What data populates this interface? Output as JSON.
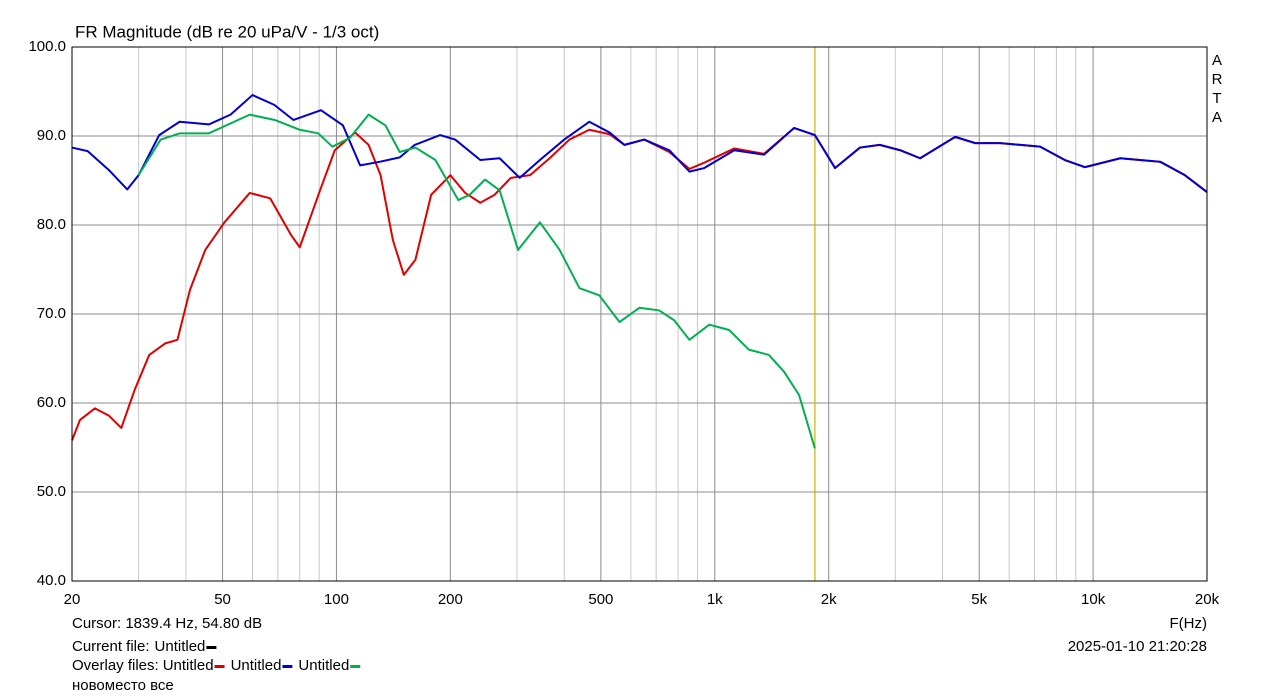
{
  "chart_data": {
    "type": "line",
    "title": "FR Magnitude (dB re 20 uPa/V - 1/3 oct)",
    "x_label": "F(Hz)",
    "watermark": "ARTA",
    "log_x": true,
    "grid": true,
    "xlim": [
      20,
      20000
    ],
    "ylim": [
      40,
      100
    ],
    "xticks": [
      20,
      50,
      100,
      200,
      500,
      {
        "value": 1000,
        "label": "1k"
      },
      {
        "value": 2000,
        "label": "2k"
      },
      {
        "value": 5000,
        "label": "5k"
      },
      {
        "value": 10000,
        "label": "10k"
      },
      {
        "value": 20000,
        "label": "20k"
      }
    ],
    "xminor_ticks": [
      30,
      40,
      60,
      70,
      80,
      90,
      300,
      400,
      600,
      700,
      800,
      900,
      3000,
      4000,
      6000,
      7000,
      8000,
      9000
    ],
    "yticks": [
      {
        "value": 40,
        "label": "40.0"
      },
      {
        "value": 50,
        "label": "50.0"
      },
      {
        "value": 60,
        "label": "60.0"
      },
      {
        "value": 70,
        "label": "70.0"
      },
      {
        "value": 80,
        "label": "80.0"
      },
      {
        "value": 90,
        "label": "90.0"
      },
      {
        "value": 100,
        "label": "100.0"
      }
    ],
    "cursor": {
      "label": "Cursor: 1839.4 Hz, 54.80 dB",
      "x": 1839.4,
      "color": "#c8b400"
    },
    "series": [
      {
        "name": "Untitled",
        "color": "#e00000",
        "x": [
          20,
          21,
          23,
          25,
          27,
          29.3,
          32,
          35.3,
          38,
          41,
          45,
          50.6,
          59,
          66.8,
          75.8,
          80,
          90.5,
          99,
          112,
          121.6,
          130.8,
          141,
          150.7,
          161.7,
          178,
          200,
          219,
          240,
          262,
          289,
          325,
          366,
          413,
          466,
          527,
          577,
          651,
          758,
          857,
          938,
          1126,
          1350,
          1620,
          1839,
          2080,
          2420,
          2730,
          3090,
          3490,
          4320,
          4880,
          5680,
          7240,
          8420,
          9520,
          11800,
          15050,
          17480,
          20000
        ],
        "values": [
          55.8,
          58.1,
          59.4,
          58.6,
          57.2,
          61.5,
          65.4,
          66.7,
          67.1,
          72.7,
          77.2,
          80.3,
          83.6,
          83.0,
          78.9,
          77.5,
          83.9,
          88.4,
          90.4,
          89.0,
          85.6,
          78.3,
          74.4,
          76.1,
          83.4,
          85.6,
          83.6,
          82.5,
          83.4,
          85.3,
          85.6,
          87.5,
          89.6,
          90.7,
          90.2,
          89.0,
          89.6,
          88.2,
          86.3,
          87.0,
          88.6,
          88.0,
          90.9,
          90.1,
          86.4,
          88.7,
          89.0,
          88.4,
          87.5,
          89.9,
          89.2,
          89.2,
          88.8,
          87.3,
          86.5,
          87.5,
          87.1,
          85.6,
          83.7
        ]
      },
      {
        "name": "Untitled",
        "color": "#0000d0",
        "x": [
          20,
          22,
          25,
          28,
          30,
          34,
          38.5,
          46,
          52.5,
          60,
          68.5,
          77,
          91,
          104,
          115.5,
          130,
          147,
          161,
          188,
          206,
          240,
          270,
          305,
          345,
          400,
          466,
          527,
          577,
          651,
          758,
          857,
          938,
          1126,
          1350,
          1620,
          1839,
          2080,
          2420,
          2730,
          3090,
          3490,
          4320,
          4880,
          5680,
          7240,
          8420,
          9520,
          11800,
          15050,
          17480,
          20000
        ],
        "values": [
          88.7,
          88.3,
          86.2,
          84.0,
          85.6,
          90.1,
          91.6,
          91.3,
          92.4,
          94.6,
          93.5,
          91.8,
          92.9,
          91.2,
          86.7,
          87.1,
          87.6,
          89.0,
          90.1,
          89.6,
          87.3,
          87.5,
          85.3,
          87.3,
          89.6,
          91.6,
          90.4,
          89.0,
          89.6,
          88.4,
          86.0,
          86.4,
          88.4,
          87.9,
          90.9,
          90.1,
          86.4,
          88.7,
          89.0,
          88.4,
          87.5,
          89.9,
          89.2,
          89.2,
          88.8,
          87.3,
          86.5,
          87.5,
          87.1,
          85.6,
          83.7
        ]
      },
      {
        "name": "Untitled",
        "color": "#00b050",
        "x": [
          30,
          34.3,
          38.6,
          46,
          59,
          68.7,
          80,
          89.5,
          97.6,
          108.6,
          121.6,
          134.7,
          147,
          161.7,
          182.6,
          210,
          225,
          247,
          270,
          302,
          345,
          389,
          439,
          495,
          560,
          632,
          713,
          781,
          857,
          967,
          1092,
          1230,
          1390,
          1525,
          1670,
          1839
        ],
        "values": [
          85.6,
          89.6,
          90.3,
          90.3,
          92.4,
          91.8,
          90.7,
          90.3,
          88.8,
          89.8,
          92.4,
          91.2,
          88.2,
          88.7,
          87.3,
          82.8,
          83.4,
          85.1,
          83.9,
          77.2,
          80.3,
          77.2,
          72.9,
          72.1,
          69.1,
          70.7,
          70.4,
          69.3,
          67.1,
          68.8,
          68.2,
          66.0,
          65.4,
          63.5,
          60.9,
          54.9
        ]
      }
    ]
  },
  "footer": {
    "current_file_label": "Current file:",
    "current_file": {
      "name": "Untitled",
      "color": "#000000"
    },
    "overlay_label": "Overlay files:",
    "note": "новоместо все",
    "timestamp": "2025-01-10  21:20:28"
  }
}
